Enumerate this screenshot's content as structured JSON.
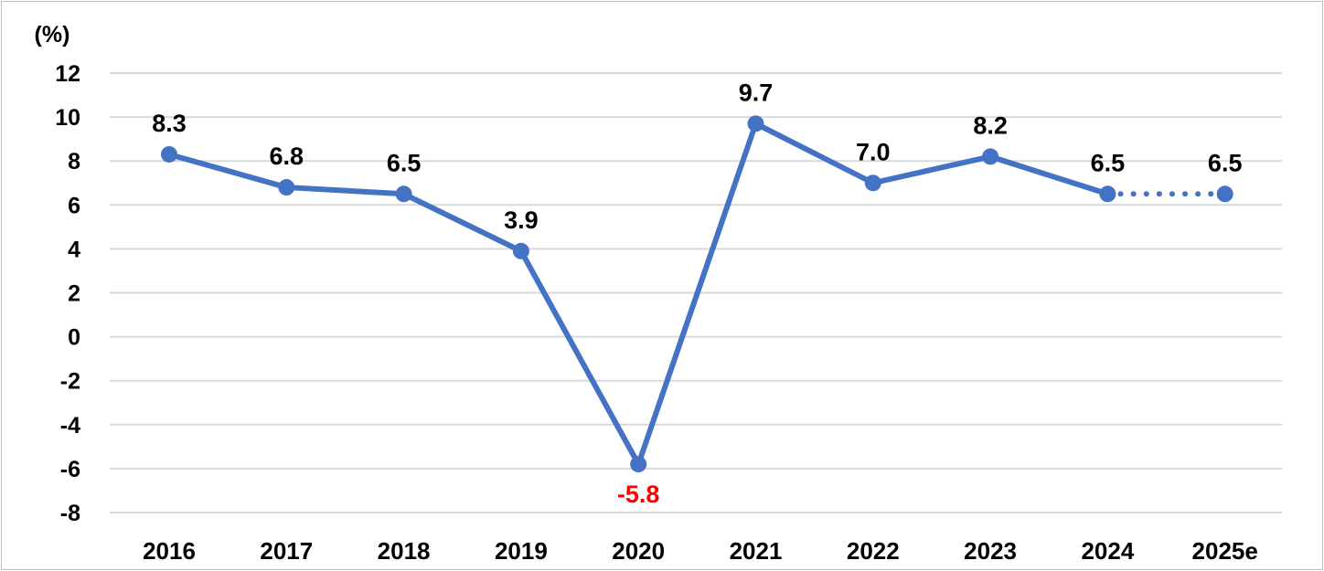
{
  "chart_data": {
    "type": "line",
    "unit_label": "(%)",
    "categories": [
      "2016",
      "2017",
      "2018",
      "2019",
      "2020",
      "2021",
      "2022",
      "2023",
      "2024",
      "2025e"
    ],
    "series": [
      {
        "values": [
          8.3,
          6.8,
          6.5,
          3.9,
          -5.8,
          9.7,
          7.0,
          8.2,
          6.5,
          6.5
        ],
        "labels": [
          "8.3",
          "6.8",
          "6.5",
          "3.9",
          "-5.8",
          "9.7",
          "7.0",
          "8.2",
          "6.5",
          "6.5"
        ],
        "color": "#4472c4",
        "estimate_from_index": 8,
        "estimate_style": "dotted"
      }
    ],
    "ylim": [
      -8,
      12
    ],
    "yticks": [
      -8,
      -6,
      -4,
      -2,
      0,
      2,
      4,
      6,
      8,
      10,
      12
    ],
    "grid": true,
    "legend": "none",
    "negative_label_color": "#ff0000",
    "label_color": "#000000"
  }
}
